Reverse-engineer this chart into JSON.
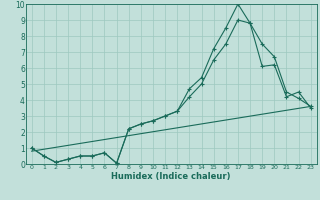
{
  "xlabel": "Humidex (Indice chaleur)",
  "bg_color": "#c2e0da",
  "grid_color": "#9dc8c0",
  "line_color": "#1a6b5a",
  "xlim": [
    -0.5,
    23.5
  ],
  "ylim": [
    0,
    10
  ],
  "xticks": [
    0,
    1,
    2,
    3,
    4,
    5,
    6,
    7,
    8,
    9,
    10,
    11,
    12,
    13,
    14,
    15,
    16,
    17,
    18,
    19,
    20,
    21,
    22,
    23
  ],
  "yticks": [
    0,
    1,
    2,
    3,
    4,
    5,
    6,
    7,
    8,
    9,
    10
  ],
  "series1_x": [
    0,
    1,
    2,
    3,
    4,
    5,
    6,
    7,
    8,
    9,
    10,
    11,
    12,
    13,
    14,
    15,
    16,
    17,
    18,
    19,
    20,
    21,
    22,
    23
  ],
  "series1_y": [
    1,
    0.5,
    0.1,
    0.3,
    0.5,
    0.5,
    0.7,
    0.05,
    2.2,
    2.5,
    2.7,
    3.0,
    3.3,
    4.7,
    5.4,
    7.2,
    8.5,
    10.0,
    8.8,
    7.5,
    6.7,
    4.5,
    4.1,
    3.6
  ],
  "series2_x": [
    0,
    1,
    2,
    3,
    4,
    5,
    6,
    7,
    8,
    9,
    10,
    11,
    12,
    13,
    14,
    15,
    16,
    17,
    18,
    19,
    20,
    21,
    22,
    23
  ],
  "series2_y": [
    1,
    0.5,
    0.1,
    0.3,
    0.5,
    0.5,
    0.7,
    0.05,
    2.2,
    2.5,
    2.7,
    3.0,
    3.3,
    4.2,
    5.0,
    6.5,
    7.5,
    9.0,
    8.8,
    6.1,
    6.2,
    4.2,
    4.5,
    3.5
  ],
  "series3_x": [
    0,
    23
  ],
  "series3_y": [
    0.8,
    3.6
  ]
}
